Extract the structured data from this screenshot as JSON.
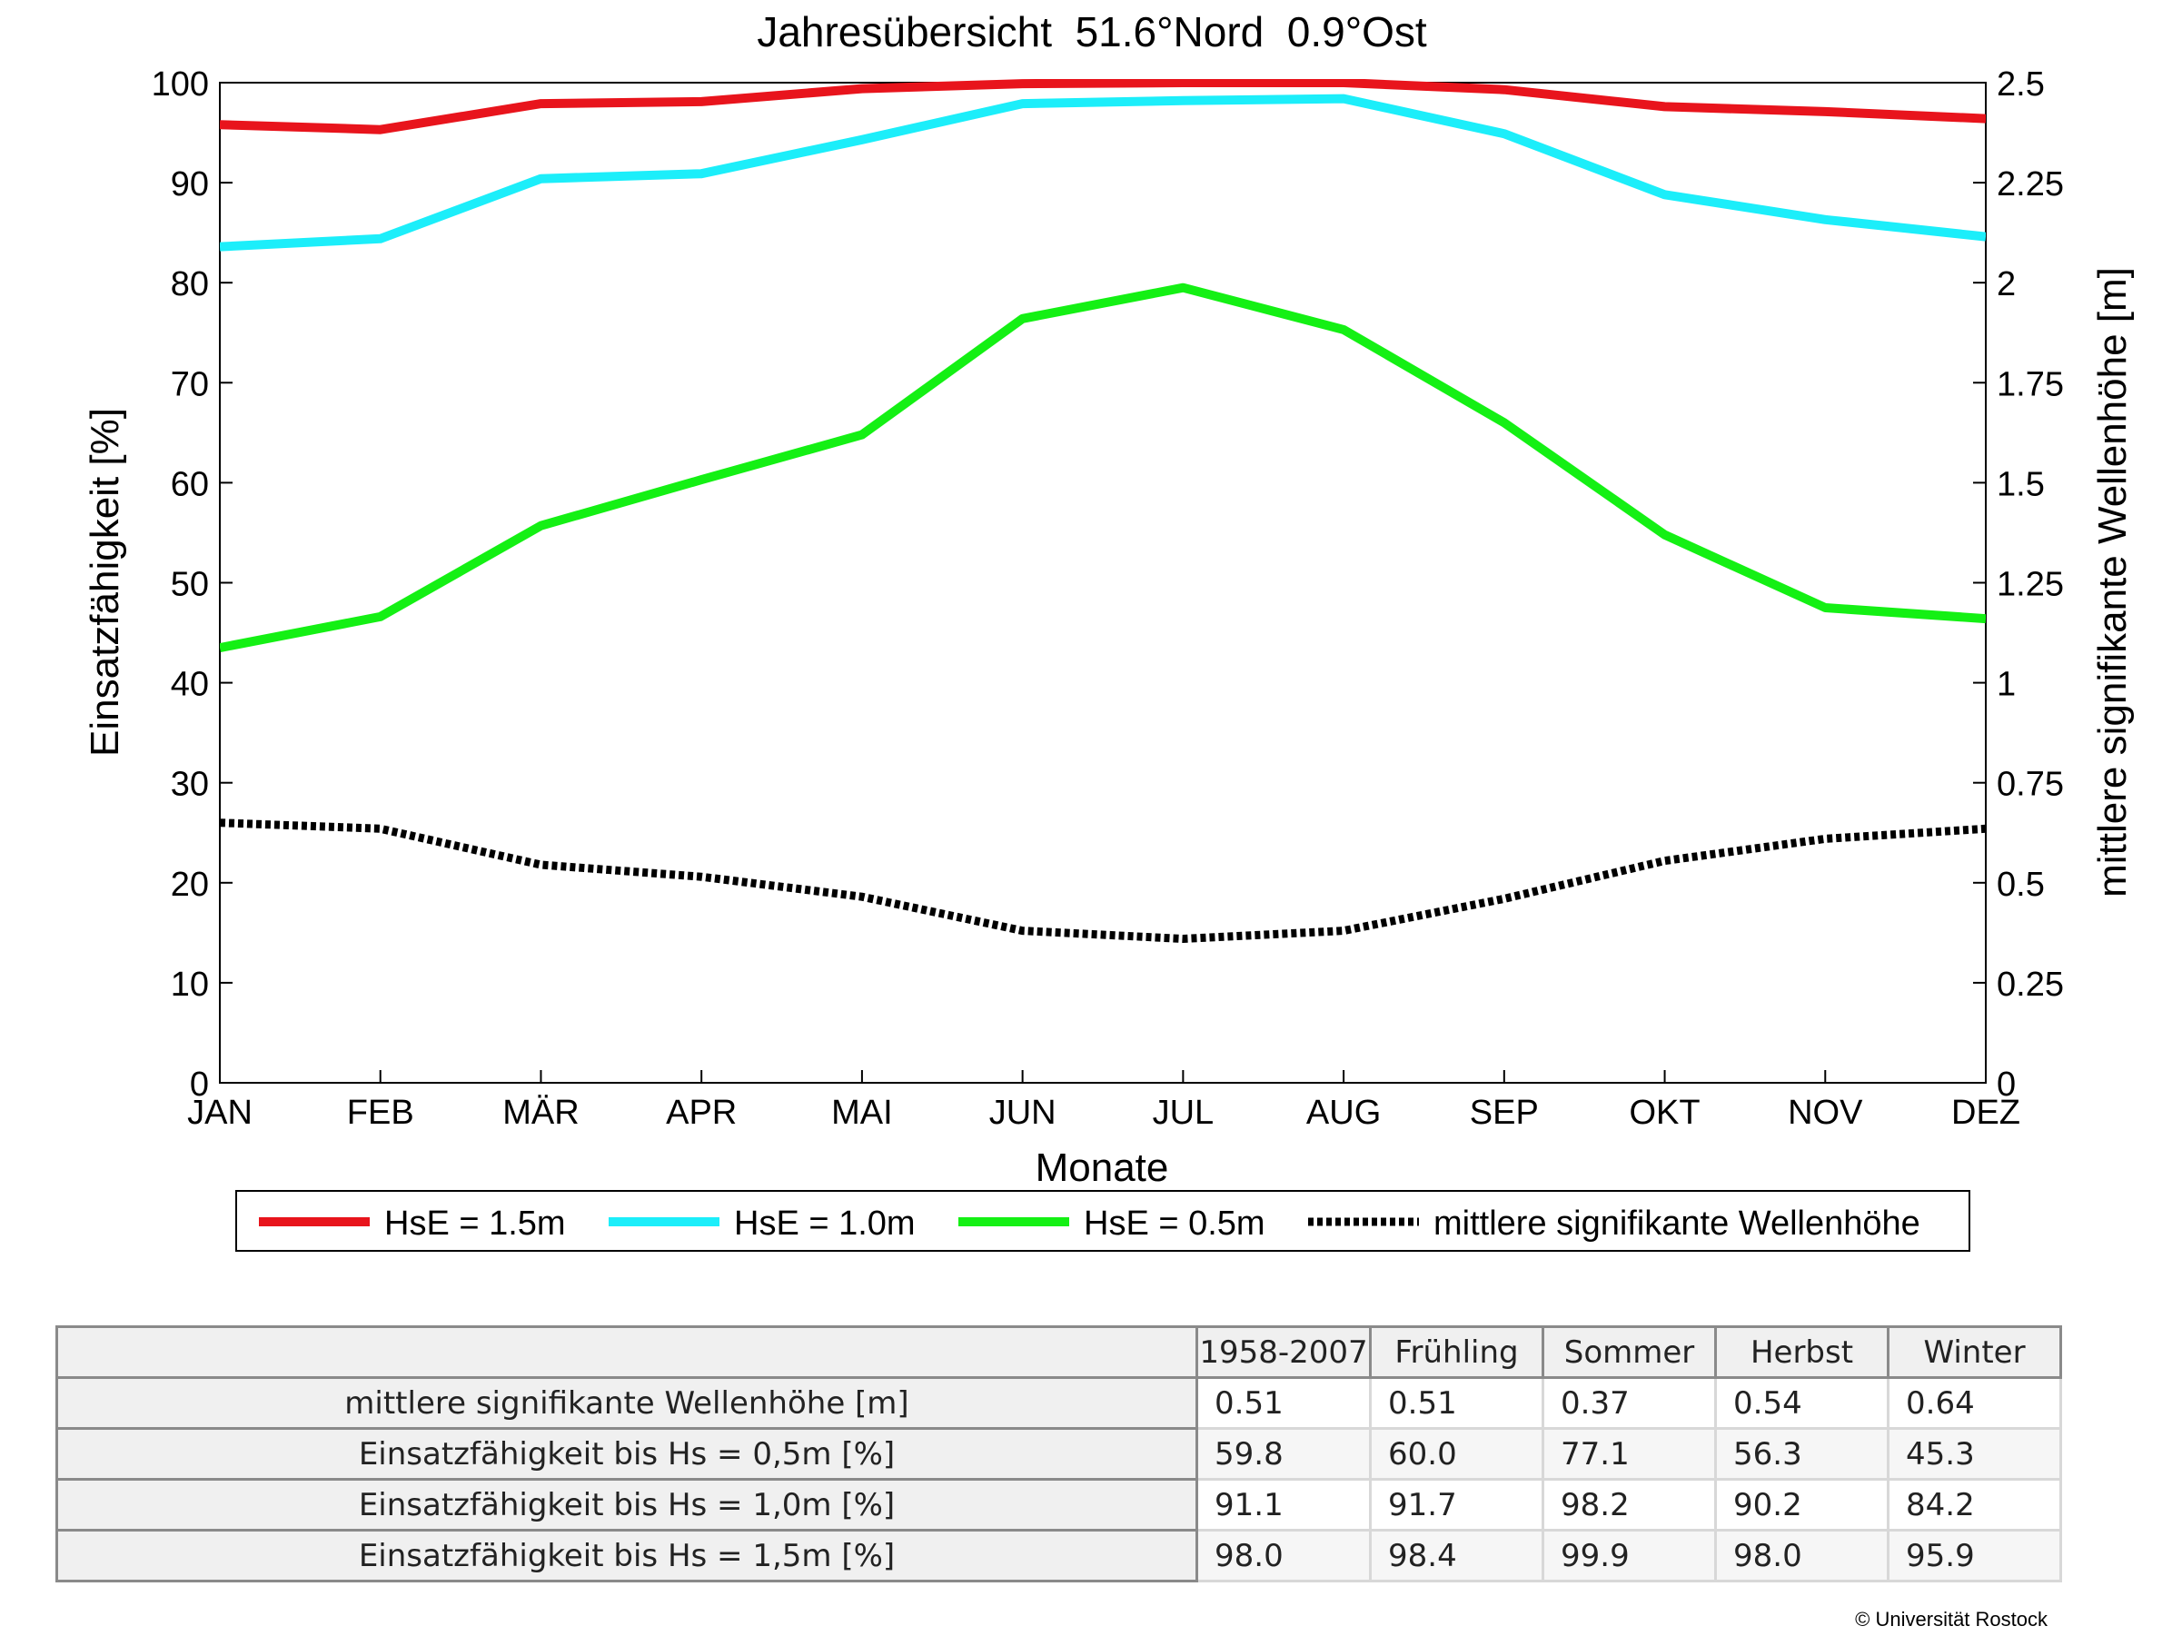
{
  "chart_data": {
    "type": "line",
    "title": "Jahresübersicht  51.6°Nord  0.9°Ost",
    "xlabel": "Monate",
    "ylabel": "Einsatzfähigkeit [%]",
    "y2label": "mittlere signifikante Wellenhöhe [m]",
    "categories": [
      "JAN",
      "FEB",
      "MÄR",
      "APR",
      "MAI",
      "JUN",
      "JUL",
      "AUG",
      "SEP",
      "OKT",
      "NOV",
      "DEZ"
    ],
    "ylim": [
      0,
      100
    ],
    "y2lim": [
      0,
      2.5
    ],
    "yticks": [
      "0",
      "10",
      "20",
      "30",
      "40",
      "50",
      "60",
      "70",
      "80",
      "90",
      "100"
    ],
    "y2ticks": [
      "0",
      "0.25",
      "0.5",
      "0.75",
      "1",
      "1.25",
      "1.5",
      "1.75",
      "2",
      "2.25",
      "2.5"
    ],
    "grid": false,
    "legend_position": "bottom",
    "series": [
      {
        "name": "HsE = 1.5m",
        "color": "#e8141c",
        "axis": "left",
        "style": "solid",
        "values": [
          95.8,
          95.3,
          97.9,
          98.1,
          99.4,
          99.9,
          100.0,
          100.0,
          99.3,
          97.6,
          97.1,
          96.4
        ]
      },
      {
        "name": "HsE = 1.0m",
        "color": "#1ceefa",
        "axis": "left",
        "style": "solid",
        "values": [
          83.6,
          84.4,
          90.4,
          90.9,
          94.3,
          97.9,
          98.2,
          98.4,
          94.9,
          88.8,
          86.3,
          84.6
        ]
      },
      {
        "name": "HsE = 0.5m",
        "color": "#14f014",
        "axis": "left",
        "style": "solid",
        "values": [
          43.5,
          46.6,
          55.7,
          60.3,
          64.8,
          76.4,
          79.5,
          75.3,
          66.0,
          54.8,
          47.5,
          46.4
        ]
      },
      {
        "name": "mittlere signifikante Wellenhöhe",
        "color": "#000000",
        "axis": "right",
        "style": "dotted",
        "values": [
          0.65,
          0.635,
          0.545,
          0.515,
          0.465,
          0.38,
          0.36,
          0.38,
          0.46,
          0.555,
          0.61,
          0.635
        ]
      }
    ]
  },
  "table": {
    "headers": [
      "",
      "1958-2007",
      "Frühling",
      "Sommer",
      "Herbst",
      "Winter"
    ],
    "rows": [
      {
        "label": "mittlere signifikante Wellenhöhe [m]",
        "values": [
          "0.51",
          "0.51",
          "0.37",
          "0.54",
          "0.64"
        ]
      },
      {
        "label": "Einsatzfähigkeit bis Hs = 0,5m [%]",
        "values": [
          "59.8",
          "60.0",
          "77.1",
          "56.3",
          "45.3"
        ]
      },
      {
        "label": "Einsatzfähigkeit bis Hs = 1,0m [%]",
        "values": [
          "91.1",
          "91.7",
          "98.2",
          "90.2",
          "84.2"
        ]
      },
      {
        "label": "Einsatzfähigkeit bis Hs = 1,5m [%]",
        "values": [
          "98.0",
          "98.4",
          "99.9",
          "98.0",
          "95.9"
        ]
      }
    ]
  },
  "copyright": "© Universität Rostock"
}
